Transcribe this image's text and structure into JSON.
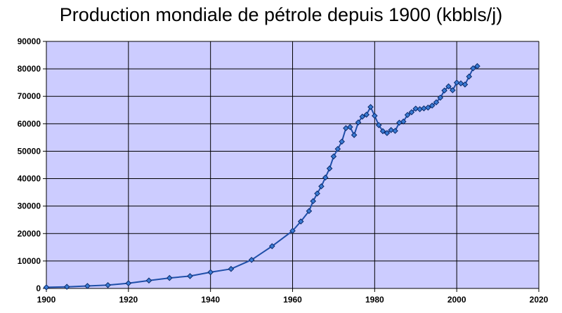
{
  "chart_data": {
    "type": "line",
    "title": "Production mondiale de pétrole depuis 1900 (kbbls/j)",
    "xlabel": "",
    "ylabel": "",
    "xlim": [
      1900,
      2020
    ],
    "ylim": [
      0,
      90000
    ],
    "x_ticks": [
      1900,
      1920,
      1940,
      1960,
      1980,
      2000,
      2020
    ],
    "y_ticks": [
      0,
      10000,
      20000,
      30000,
      40000,
      50000,
      60000,
      70000,
      80000,
      90000
    ],
    "grid": true,
    "legend": "none",
    "colors": {
      "plot_background": "#ccccff",
      "line": "#1f4fa8",
      "marker": "#3a7bd5",
      "marker_edge": "#0a2a6a",
      "grid": "#000000"
    },
    "series": [
      {
        "x": [
          1900,
          1905,
          1910,
          1915,
          1920,
          1925,
          1930,
          1935,
          1940,
          1945,
          1950,
          1955,
          1960,
          1962,
          1964,
          1965,
          1966,
          1967,
          1968,
          1969,
          1970,
          1971,
          1972,
          1973,
          1974,
          1975,
          1976,
          1977,
          1978,
          1979,
          1980,
          1981,
          1982,
          1983,
          1984,
          1985,
          1986,
          1987,
          1988,
          1989,
          1990,
          1991,
          1992,
          1993,
          1994,
          1995,
          1996,
          1997,
          1998,
          1999,
          2000,
          2001,
          2002,
          2003,
          2004,
          2005
        ],
        "values": [
          400,
          600,
          900,
          1200,
          1900,
          2900,
          3800,
          4500,
          5900,
          7100,
          10400,
          15400,
          21000,
          24400,
          28200,
          31800,
          34600,
          37200,
          40400,
          43700,
          48100,
          50800,
          53500,
          58400,
          58800,
          55900,
          60500,
          62600,
          63300,
          66100,
          62900,
          59500,
          57300,
          56600,
          57700,
          57400,
          60400,
          60800,
          63200,
          64200,
          65500,
          65300,
          65600,
          65900,
          66600,
          67800,
          69500,
          72100,
          73600,
          72200,
          75000,
          74700,
          74300,
          77200,
          80200,
          81000
        ]
      }
    ]
  }
}
